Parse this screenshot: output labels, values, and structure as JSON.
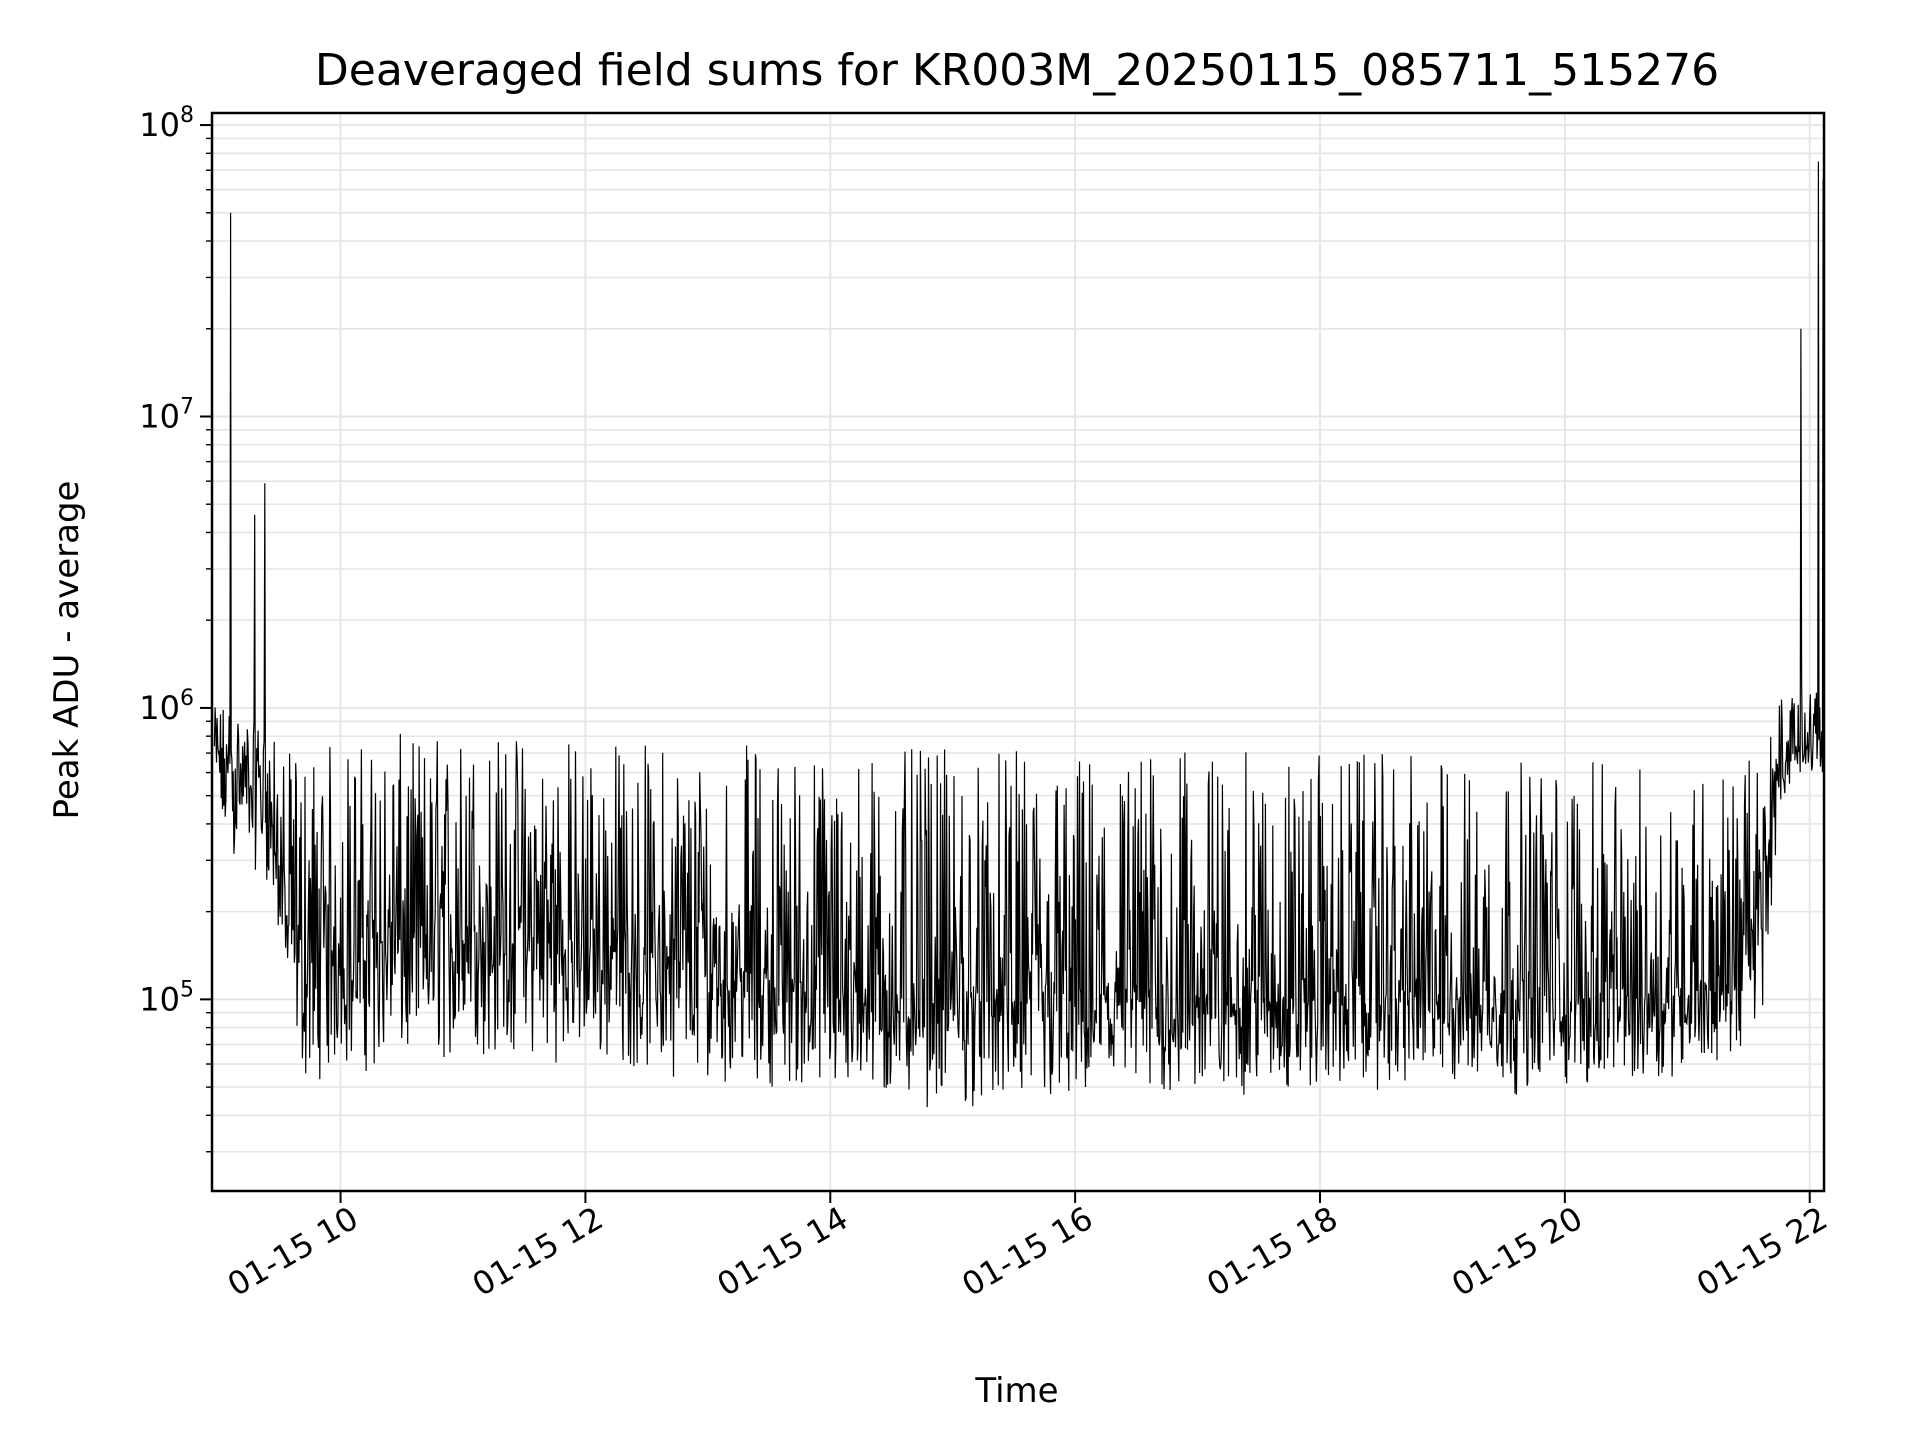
{
  "chart_data": {
    "type": "line",
    "title": "Deaveraged field sums for KR003M_20250115_085711_515276",
    "xlabel": "Time",
    "ylabel": "Peak ADU - average",
    "x_range": [
      "01-15 08:57",
      "01-15 22:07"
    ],
    "y_range": [
      22000,
      110000000
    ],
    "y_scale": "log",
    "grid": true,
    "x_ticks": [
      "01-15 10",
      "01-15 12",
      "01-15 14",
      "01-15 16",
      "01-15 18",
      "01-15 20",
      "01-15 22"
    ],
    "x_tick_hours": [
      10,
      12,
      14,
      16,
      18,
      20,
      22
    ],
    "y_ticks": [
      {
        "value": 100000,
        "base": "10",
        "exp": "5"
      },
      {
        "value": 1000000,
        "base": "10",
        "exp": "6"
      },
      {
        "value": 10000000,
        "base": "10",
        "exp": "7"
      },
      {
        "value": 100000000,
        "base": "10",
        "exp": "8"
      }
    ],
    "line_color": "#000000",
    "grid_color": "#e6e6e6",
    "series": [
      {
        "envelope": {
          "x_hours": [
            8.97,
            9.05,
            9.2,
            9.4,
            9.55,
            9.7,
            10.0,
            10.5,
            11.0,
            11.5,
            12.0,
            12.5,
            13.0,
            13.5,
            14.0,
            14.5,
            15.0,
            15.5,
            16.0,
            16.5,
            17.0,
            17.5,
            18.0,
            18.5,
            19.0,
            19.5,
            20.0,
            20.5,
            21.0,
            21.4,
            21.6,
            21.75,
            21.9,
            22.0,
            22.12
          ],
          "upper": [
            1000000,
            1100000,
            950000,
            850000,
            700000,
            750000,
            780000,
            820000,
            850000,
            850000,
            820000,
            780000,
            780000,
            760000,
            740000,
            730000,
            720000,
            720000,
            720000,
            730000,
            720000,
            710000,
            700000,
            700000,
            690000,
            680000,
            660000,
            640000,
            640000,
            650000,
            700000,
            1100000,
            1300000,
            1200000,
            1100000
          ],
          "median": [
            700000,
            650000,
            600000,
            550000,
            200000,
            130000,
            150000,
            160000,
            170000,
            170000,
            150000,
            140000,
            130000,
            120000,
            110000,
            100000,
            100000,
            100000,
            100000,
            100000,
            100000,
            100000,
            105000,
            105000,
            105000,
            100000,
            100000,
            100000,
            110000,
            120000,
            200000,
            650000,
            750000,
            750000,
            800000
          ],
          "lower": [
            350000,
            300000,
            300000,
            250000,
            110000,
            50000,
            55000,
            55000,
            60000,
            60000,
            60000,
            55000,
            52000,
            50000,
            45000,
            42000,
            42000,
            40000,
            40000,
            42000,
            45000,
            45000,
            48000,
            48000,
            48000,
            46000,
            48000,
            50000,
            55000,
            60000,
            70000,
            450000,
            550000,
            600000,
            600000
          ]
        },
        "points": 2400
      }
    ],
    "spikes": [
      {
        "x_hour": 9.1,
        "y": 65000000
      },
      {
        "x_hour": 9.1,
        "y": 50000000
      },
      {
        "x_hour": 9.3,
        "y": 4600000
      },
      {
        "x_hour": 9.38,
        "y": 5900000
      },
      {
        "x_hour": 21.93,
        "y": 20000000
      },
      {
        "x_hour": 22.07,
        "y": 75000000
      },
      {
        "x_hour": 22.11,
        "y": 65000000
      }
    ]
  }
}
